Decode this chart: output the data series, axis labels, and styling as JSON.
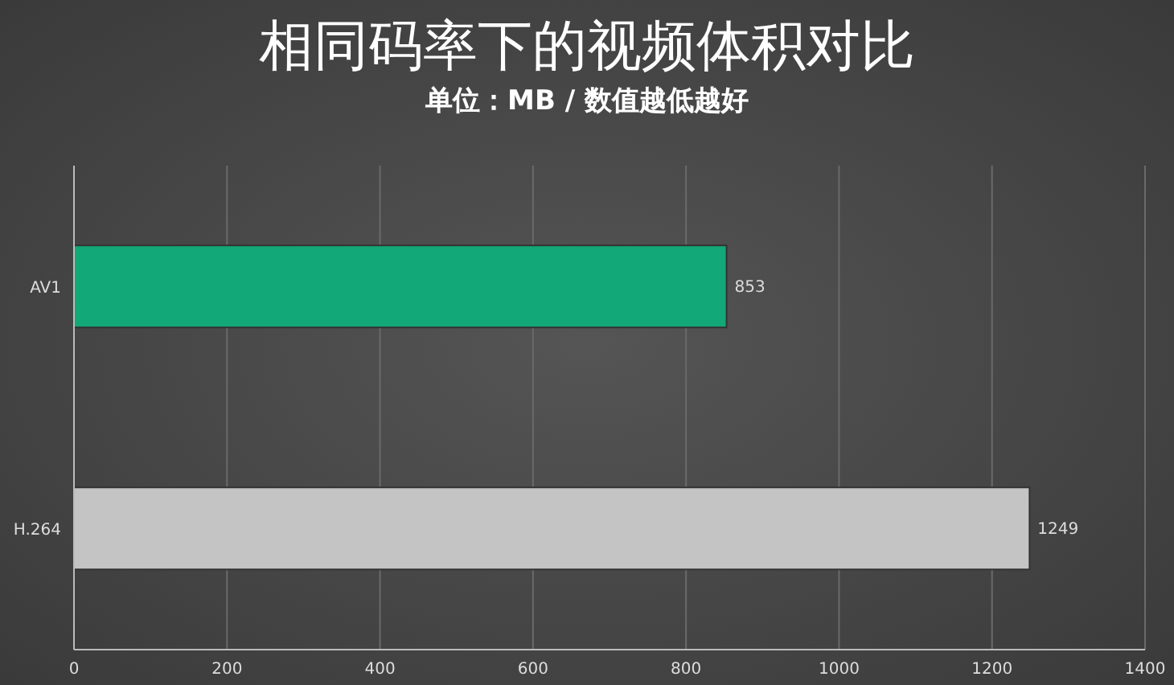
{
  "chart_data": {
    "type": "bar",
    "orientation": "horizontal",
    "title": "相同码率下的视频体积对比",
    "subtitle": "单位：MB / 数值越低越好",
    "categories": [
      "AV1",
      "H.264"
    ],
    "values": [
      853,
      1249
    ],
    "colors": [
      "#12a878",
      "#c4c4c4"
    ],
    "xlim": [
      0,
      1400
    ],
    "xticks": [
      0,
      200,
      400,
      600,
      800,
      1000,
      1200,
      1400
    ],
    "grid": "x",
    "data_labels": true
  }
}
